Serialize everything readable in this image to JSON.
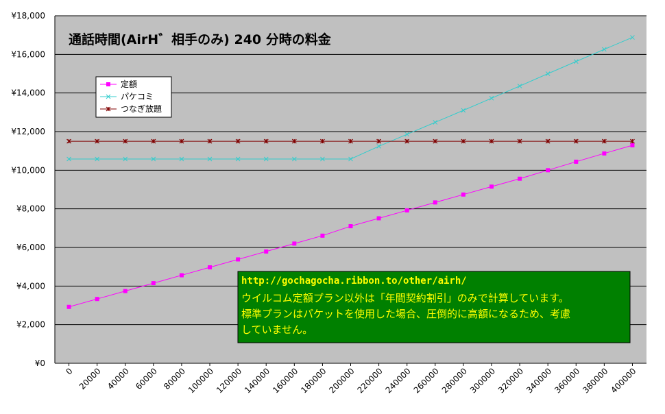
{
  "chart_data": {
    "type": "line",
    "title": "通話時間(AirH゛相手のみ) 240 分時の料金",
    "xlabel": "",
    "ylabel": "",
    "x": [
      10000,
      30000,
      50000,
      70000,
      90000,
      110000,
      130000,
      150000,
      170000,
      190000,
      210000,
      230000,
      250000,
      270000,
      290000,
      310000,
      330000,
      350000,
      370000,
      390000,
      410000
    ],
    "x_tick_labels": [
      "0",
      "20000",
      "40000",
      "60000",
      "80000",
      "100000",
      "120000",
      "140000",
      "160000",
      "180000",
      "200000",
      "220000",
      "240000",
      "260000",
      "280000",
      "300000",
      "320000",
      "340000",
      "360000",
      "380000",
      "400000"
    ],
    "y_tick_labels": [
      "¥0",
      "¥2,000",
      "¥4,000",
      "¥6,000",
      "¥8,000",
      "¥10,000",
      "¥12,000",
      "¥14,000",
      "¥16,000",
      "¥18,000"
    ],
    "ylim": [
      0,
      18000
    ],
    "grid": "horizontal",
    "legend_position": "top-left",
    "series": [
      {
        "name": "定額",
        "color": "#ff00ff",
        "marker": "square",
        "values": [
          2920,
          3330,
          3740,
          4150,
          4560,
          4970,
          5380,
          5790,
          6200,
          6610,
          7100,
          7510,
          7920,
          8330,
          8740,
          9150,
          9560,
          10000,
          10440,
          10870,
          11290
        ]
      },
      {
        "name": "パケコミ",
        "color": "#33cccc",
        "marker": "x",
        "values": [
          10580,
          10580,
          10580,
          10580,
          10580,
          10580,
          10580,
          10580,
          10580,
          10580,
          10580,
          11240,
          11860,
          12480,
          13100,
          13730,
          14360,
          15000,
          15630,
          16260,
          16880
        ]
      },
      {
        "name": "つなぎ放題",
        "color": "#800000",
        "marker": "star",
        "values": [
          11500,
          11500,
          11500,
          11500,
          11500,
          11500,
          11500,
          11500,
          11500,
          11500,
          11500,
          11500,
          11500,
          11500,
          11500,
          11500,
          11500,
          11500,
          11500,
          11500,
          11500
        ]
      }
    ],
    "annotation": {
      "url": "http://gochagocha.ribbon.to/other/airh/",
      "lines": [
        "ウイルコム定額プラン以外は「年間契約割引」のみで計算しています。",
        "標準プランはパケットを使用した場合、圧倒的に高額になるため、考慮",
        "していません。"
      ],
      "background": "#008000",
      "text_color": "#ffff00"
    },
    "plot_background": "#c0c0c0",
    "gridline_color": "#000000"
  }
}
